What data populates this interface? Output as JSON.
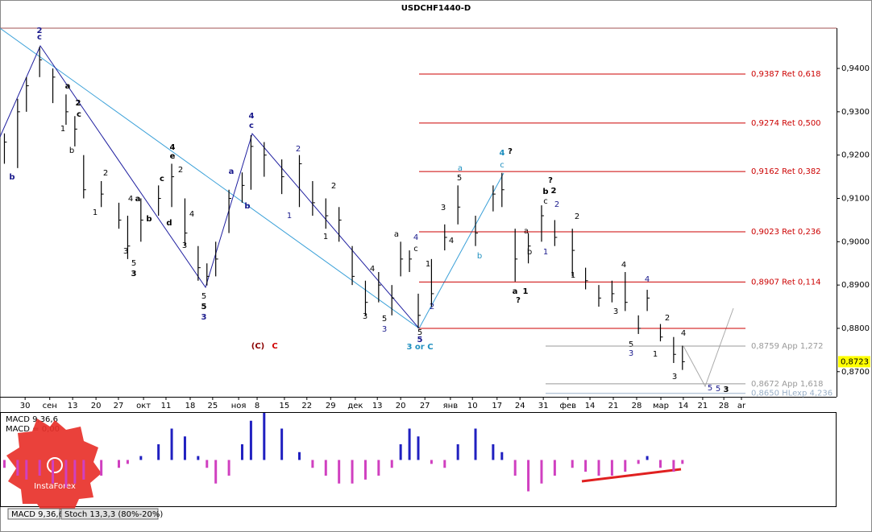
{
  "chart_data": [
    {
      "type": "ohlc",
      "title": "USDCHF1440-D",
      "color": "#000000",
      "x": [
        1,
        4,
        6,
        9,
        12,
        15,
        17,
        19,
        23,
        27,
        29,
        32,
        36,
        39,
        42,
        45,
        47,
        49,
        52,
        55,
        57,
        60,
        64,
        68,
        71,
        74,
        77,
        80,
        83,
        86,
        89,
        91,
        93,
        95,
        98,
        101,
        104,
        108,
        112,
        114,
        117,
        120,
        123,
        126,
        130,
        133,
        136,
        139,
        142,
        145,
        147,
        150,
        153,
        155
      ],
      "high": [
        0.925,
        0.933,
        0.938,
        0.945,
        0.94,
        0.934,
        0.929,
        0.92,
        0.914,
        0.909,
        0.906,
        0.91,
        0.913,
        0.918,
        0.91,
        0.899,
        0.895,
        0.9,
        0.912,
        0.916,
        0.9246,
        0.923,
        0.919,
        0.92,
        0.914,
        0.91,
        0.908,
        0.899,
        0.891,
        0.893,
        0.89,
        0.9,
        0.898,
        0.888,
        0.896,
        0.904,
        0.913,
        0.906,
        0.913,
        0.9159,
        0.903,
        0.902,
        0.9084,
        0.905,
        0.903,
        0.894,
        0.89,
        0.891,
        0.893,
        0.883,
        0.8889,
        0.881,
        0.878,
        0.876
      ],
      "low": [
        0.918,
        0.917,
        0.93,
        0.938,
        0.932,
        0.927,
        0.922,
        0.91,
        0.908,
        0.903,
        0.896,
        0.9,
        0.906,
        0.908,
        0.899,
        0.891,
        0.8899,
        0.892,
        0.902,
        0.909,
        0.912,
        0.915,
        0.911,
        0.908,
        0.906,
        0.903,
        0.9,
        0.89,
        0.883,
        0.886,
        0.883,
        0.892,
        0.893,
        0.88,
        0.885,
        0.898,
        0.904,
        0.899,
        0.907,
        0.908,
        0.8908,
        0.895,
        0.9,
        0.899,
        0.892,
        0.889,
        0.885,
        0.886,
        0.884,
        0.8787,
        0.884,
        0.877,
        0.872,
        0.8704
      ],
      "close": [
        0.923,
        0.93,
        0.936,
        0.942,
        0.938,
        0.93,
        0.926,
        0.912,
        0.911,
        0.905,
        0.899,
        0.905,
        0.91,
        0.915,
        0.902,
        0.894,
        0.892,
        0.896,
        0.91,
        0.913,
        0.922,
        0.92,
        0.915,
        0.918,
        0.909,
        0.906,
        0.905,
        0.892,
        0.886,
        0.89,
        0.887,
        0.896,
        0.896,
        0.883,
        0.888,
        0.901,
        0.908,
        0.902,
        0.911,
        0.912,
        0.896,
        0.899,
        0.906,
        0.901,
        0.898,
        0.891,
        0.887,
        0.888,
        0.886,
        0.88,
        0.887,
        0.878,
        0.874,
        0.8723
      ],
      "xlim": [
        0,
        190
      ],
      "ylim": [
        0.8642,
        0.9493
      ],
      "yticks": [
        {
          "value": 0.87,
          "label": "0,8700"
        },
        {
          "value": 0.88,
          "label": "0,8800"
        },
        {
          "value": 0.89,
          "label": "0,8900"
        },
        {
          "value": 0.9,
          "label": "0,9000"
        },
        {
          "value": 0.91,
          "label": "0,9100"
        },
        {
          "value": 0.92,
          "label": "0,9200"
        },
        {
          "value": 0.93,
          "label": "0,9300"
        },
        {
          "value": 0.94,
          "label": "0,9400"
        }
      ],
      "xticks": [
        {
          "value": 5.7,
          "label": "30"
        },
        {
          "value": 11.3,
          "label": "сен"
        },
        {
          "value": 16.5,
          "label": "13"
        },
        {
          "value": 21.8,
          "label": "20"
        },
        {
          "value": 26.9,
          "label": "27"
        },
        {
          "value": 32.6,
          "label": "окт"
        },
        {
          "value": 37.7,
          "label": "11"
        },
        {
          "value": 43.2,
          "label": "18"
        },
        {
          "value": 48.3,
          "label": "25"
        },
        {
          "value": 54.2,
          "label": "ноя"
        },
        {
          "value": 58.4,
          "label": "8"
        },
        {
          "value": 64.6,
          "label": "15"
        },
        {
          "value": 69.7,
          "label": "22"
        },
        {
          "value": 75.1,
          "label": "29"
        },
        {
          "value": 80.7,
          "label": "дек"
        },
        {
          "value": 85.7,
          "label": "13"
        },
        {
          "value": 91,
          "label": "20"
        },
        {
          "value": 96.5,
          "label": "27"
        },
        {
          "value": 102.3,
          "label": "янв"
        },
        {
          "value": 107.3,
          "label": "10"
        },
        {
          "value": 112.9,
          "label": "17"
        },
        {
          "value": 118.1,
          "label": "24"
        },
        {
          "value": 123.4,
          "label": "31"
        },
        {
          "value": 129,
          "label": "фев"
        },
        {
          "value": 134,
          "label": "14"
        },
        {
          "value": 139.3,
          "label": "21"
        },
        {
          "value": 144.6,
          "label": "28"
        },
        {
          "value": 150.1,
          "label": "мар"
        },
        {
          "value": 155.2,
          "label": "14"
        },
        {
          "value": 159.6,
          "label": "21"
        },
        {
          "value": 164.4,
          "label": "28"
        },
        {
          "value": 168.4,
          "label": "ar"
        }
      ],
      "levels": [
        {
          "value": 0.9387,
          "label": "0,9387 Ret 0,618",
          "color": "#cc0000"
        },
        {
          "value": 0.9274,
          "label": "0,9274 Ret 0,500",
          "color": "#cc0000"
        },
        {
          "value": 0.9162,
          "label": "0,9162 Ret 0,382",
          "color": "#cc0000"
        },
        {
          "value": 0.9023,
          "label": "0,9023 Ret 0,236",
          "color": "#cc0000"
        },
        {
          "value": 0.8907,
          "label": "0,8907 Ret 0,114",
          "color": "#cc0000"
        },
        {
          "value": 0.88,
          "color": "#cc0000"
        },
        {
          "value": 0.8759,
          "label": "0,8759 App 1,272",
          "color": "#999999"
        },
        {
          "value": 0.8672,
          "label": "0,8672 App 1,618",
          "color": "#999999"
        },
        {
          "value": 0.865,
          "label": "0,8650 HLexp 4,236",
          "color": "#9ab0c8"
        }
      ],
      "last_price": 0.8723,
      "last_price_label": "0,8723"
    },
    {
      "type": "macd",
      "title": "MACD 9,36,6",
      "value_text": "MACD = 0,00",
      "positive_color": "#2020c0",
      "negative_color": "#d040c0",
      "x": [
        1,
        4,
        6,
        9,
        12,
        15,
        17,
        19,
        23,
        27,
        29,
        32,
        36,
        39,
        42,
        45,
        47,
        49,
        52,
        55,
        57,
        60,
        64,
        68,
        71,
        74,
        77,
        80,
        83,
        86,
        89,
        91,
        93,
        95,
        98,
        101,
        104,
        108,
        112,
        114,
        117,
        120,
        123,
        126,
        130,
        133,
        136,
        139,
        142,
        145,
        147,
        150,
        153,
        155
      ],
      "values": [
        -0.001,
        -0.002,
        -0.0025,
        -0.002,
        -0.003,
        -0.0035,
        -0.003,
        -0.0025,
        -0.002,
        -0.001,
        -0.0005,
        0.0005,
        0.002,
        0.004,
        0.003,
        0.0005,
        -0.001,
        -0.003,
        -0.002,
        0.002,
        0.005,
        0.006,
        0.004,
        0.001,
        -0.001,
        -0.002,
        -0.003,
        -0.003,
        -0.0025,
        -0.002,
        -0.001,
        0.002,
        0.004,
        0.003,
        -0.0005,
        -0.001,
        0.002,
        0.004,
        0.002,
        0.001,
        -0.002,
        -0.004,
        -0.003,
        -0.002,
        -0.001,
        -0.0015,
        -0.002,
        -0.002,
        -0.0015,
        -0.0005,
        0.0005,
        -0.001,
        -0.0015,
        -0.0005
      ],
      "xlim": [
        0,
        190
      ],
      "ylim": [
        -0.006,
        0.006
      ]
    }
  ],
  "tabs": [
    "MACD 9,36,6",
    "Stoch 13,3,3 (80%-20%)"
  ],
  "logo": "InstaForex",
  "annotations": [
    "2",
    "c",
    "b",
    "a",
    "2",
    "c",
    "1",
    "b",
    "2",
    "1",
    "4",
    "a",
    "b",
    "3",
    "5",
    "3",
    "4",
    "e",
    "c",
    "2",
    "d",
    "4",
    "3",
    "5",
    "5",
    "3",
    "4",
    "c",
    "a",
    "b",
    "2",
    "1",
    "2",
    "1",
    "4",
    "3",
    "5",
    "3",
    "a",
    "c",
    "4",
    "1",
    "2",
    "5",
    "5",
    "3 or C",
    "(C)",
    "C",
    "3",
    "4",
    "5",
    "a",
    "b",
    "4",
    "?",
    "c",
    "?",
    "b",
    "2",
    "c",
    "2",
    "a",
    "b",
    "1",
    "a",
    "1",
    "?",
    "2",
    "1",
    "4",
    "4",
    "3",
    "5",
    "3",
    "2",
    "1",
    "4",
    "3",
    "5",
    "5",
    "3"
  ]
}
